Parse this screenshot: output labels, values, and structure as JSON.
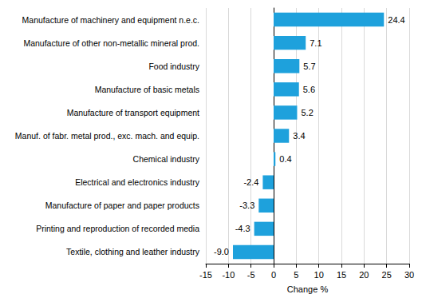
{
  "chart_data": {
    "type": "bar",
    "orientation": "horizontal",
    "categories": [
      "Manufacture of machinery and equipment n.e.c.",
      "Manufacture of other non-metallic mineral prod.",
      "Food industry",
      "Manufacture of basic metals",
      "Manufacture of transport equipment",
      "Manuf. of fabr. metal prod., exc. mach. and equip.",
      "Chemical industry",
      "Electrical and electronics industry",
      "Manufacture of paper and paper products",
      "Printing and reproduction of recorded media",
      "Textile, clothing and leather industry"
    ],
    "values": [
      24.4,
      7.1,
      5.7,
      5.6,
      5.2,
      3.4,
      0.4,
      -2.4,
      -3.3,
      -4.3,
      -9.0
    ],
    "value_labels": [
      "24.4",
      "7.1",
      "5.7",
      "5.6",
      "5.2",
      "3.4",
      "0.4",
      "-2.4",
      "-3.3",
      "-4.3",
      "-9.0"
    ],
    "color": "#1ea1dc",
    "x_label": "Change %",
    "xlim": [
      -15,
      30
    ],
    "xticks": [
      -15,
      -10,
      -5,
      0,
      5,
      10,
      15,
      20,
      25,
      30
    ],
    "grid": true,
    "data_labels": true
  }
}
